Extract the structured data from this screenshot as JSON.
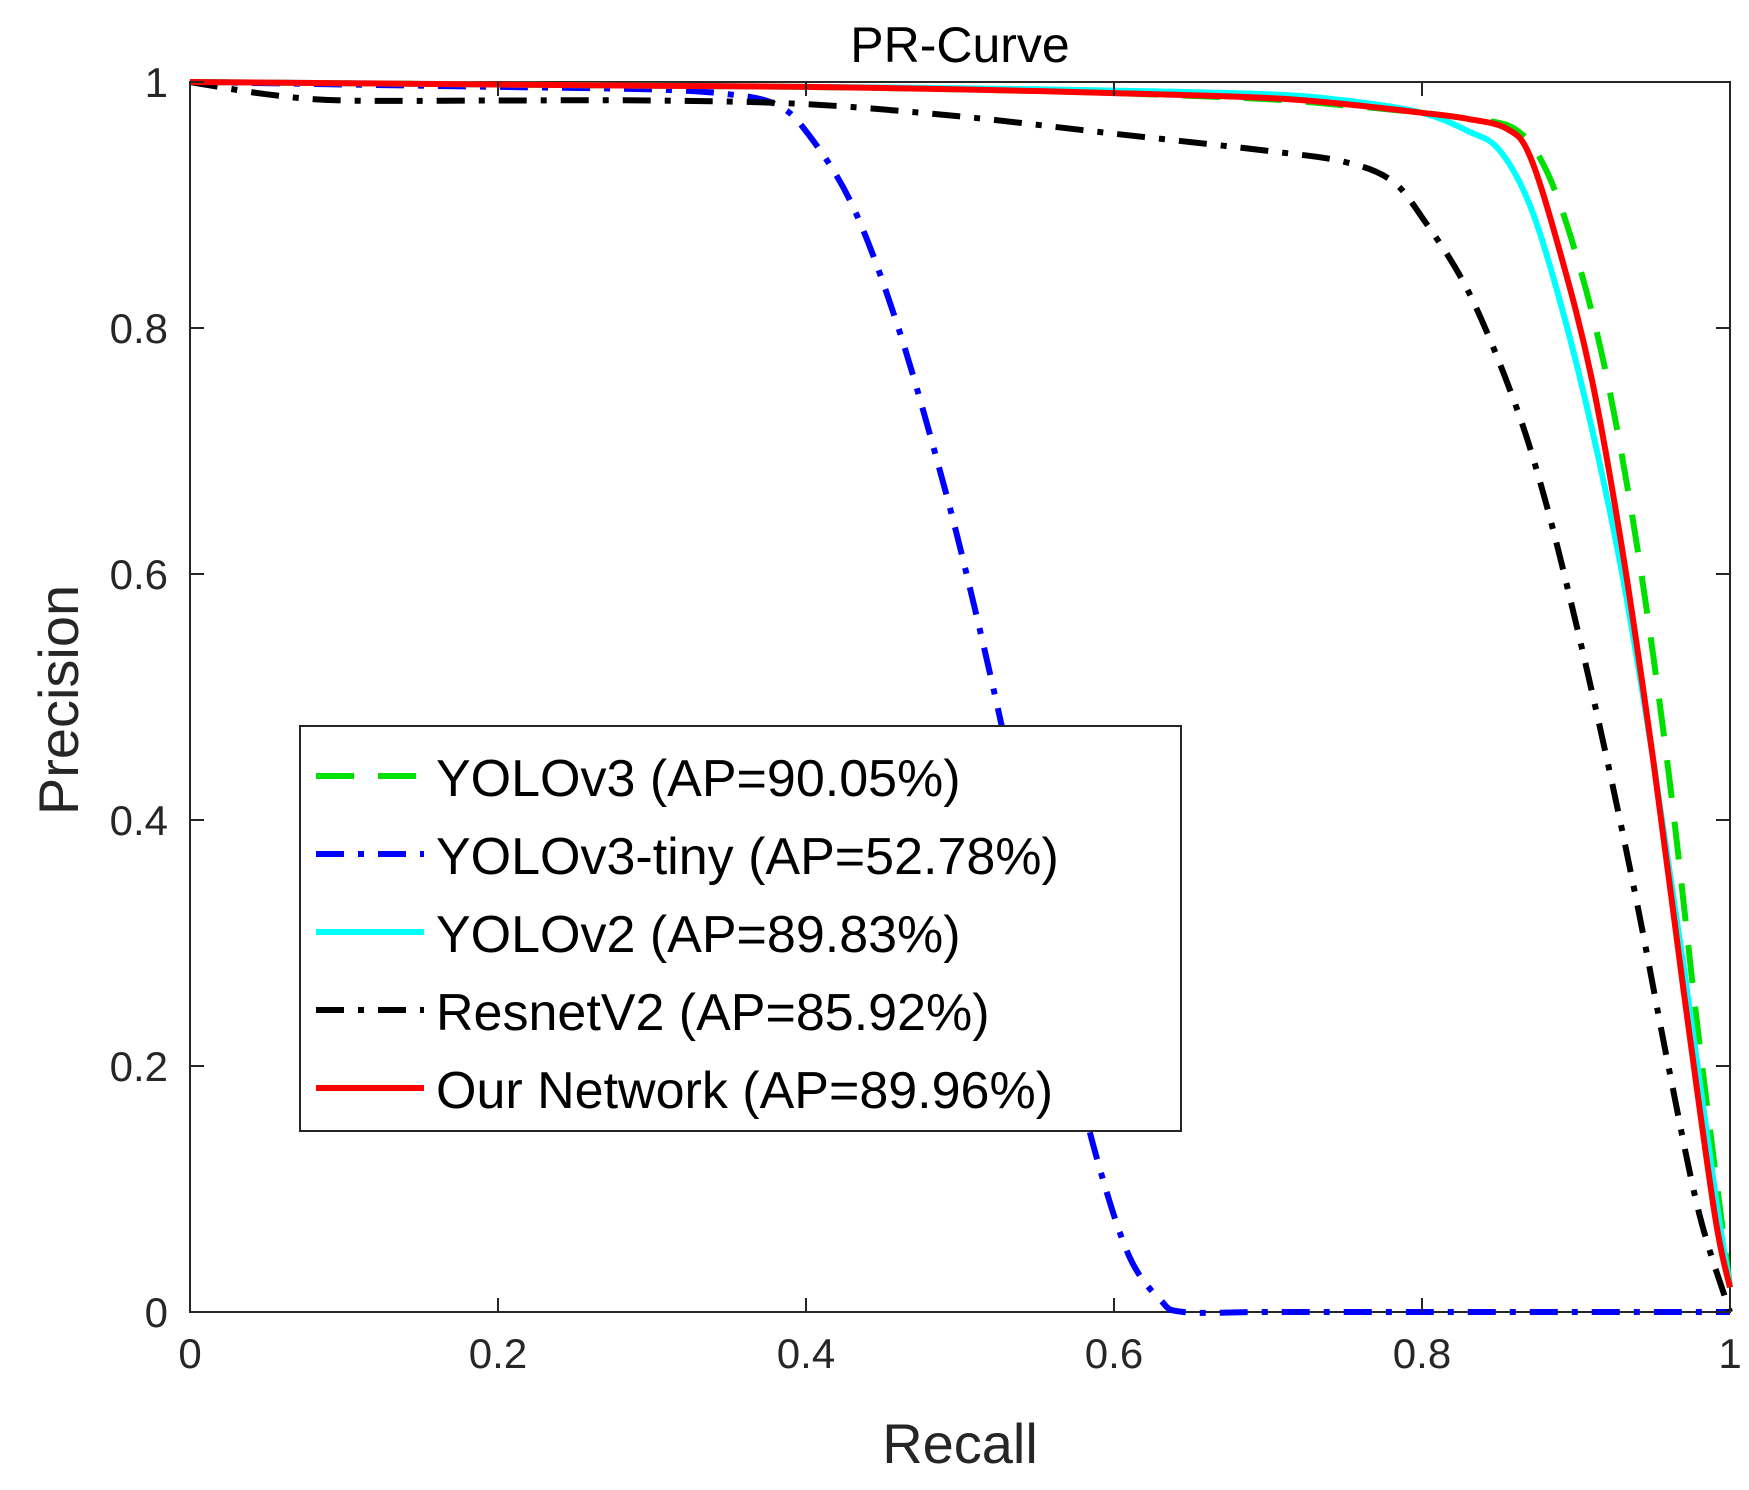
{
  "chart_data": {
    "type": "line",
    "title": "PR-Curve",
    "xlabel": "Recall",
    "ylabel": "Precision",
    "xlim": [
      0,
      1
    ],
    "ylim": [
      0,
      1
    ],
    "xticks": [
      0,
      0.2,
      0.4,
      0.6,
      0.8,
      1
    ],
    "yticks": [
      0,
      0.2,
      0.4,
      0.6,
      0.8,
      1
    ],
    "xtick_labels": [
      "0",
      "0.2",
      "0.4",
      "0.6",
      "0.8",
      "1"
    ],
    "ytick_labels": [
      "0",
      "0.2",
      "0.4",
      "0.6",
      "0.8",
      "1"
    ],
    "grid": false,
    "legend_position": "center-left",
    "series": [
      {
        "name": "YOLOv3 (AP=90.05%)",
        "color": "#00e000",
        "style": "dashed",
        "x": [
          0,
          0.1,
          0.2,
          0.3,
          0.4,
          0.5,
          0.6,
          0.7,
          0.75,
          0.8,
          0.83,
          0.86,
          0.88,
          0.9,
          0.92,
          0.94,
          0.96,
          0.98,
          1.0
        ],
        "y": [
          1.0,
          0.999,
          0.998,
          0.997,
          0.996,
          0.994,
          0.991,
          0.986,
          0.981,
          0.975,
          0.97,
          0.962,
          0.93,
          0.86,
          0.76,
          0.62,
          0.44,
          0.22,
          0.02
        ]
      },
      {
        "name": "YOLOv3-tiny (AP=52.78%)",
        "color": "#0000ff",
        "style": "dashdot",
        "x": [
          0,
          0.1,
          0.2,
          0.3,
          0.35,
          0.38,
          0.4,
          0.43,
          0.46,
          0.49,
          0.51,
          0.53,
          0.55,
          0.57,
          0.59,
          0.61,
          0.63,
          0.645,
          0.7,
          0.8,
          0.9,
          1.0
        ],
        "y": [
          1.0,
          0.998,
          0.996,
          0.994,
          0.99,
          0.982,
          0.96,
          0.9,
          0.8,
          0.67,
          0.57,
          0.46,
          0.34,
          0.22,
          0.12,
          0.045,
          0.01,
          0.0,
          0.0,
          0.0,
          0.0,
          0.0
        ]
      },
      {
        "name": "YOLOv2 (AP=89.83%)",
        "color": "#00ffff",
        "style": "solid",
        "x": [
          0,
          0.1,
          0.2,
          0.3,
          0.4,
          0.5,
          0.6,
          0.7,
          0.75,
          0.8,
          0.83,
          0.85,
          0.87,
          0.89,
          0.91,
          0.93,
          0.95,
          0.97,
          0.99,
          1.0
        ],
        "y": [
          1.0,
          0.999,
          0.998,
          0.997,
          0.996,
          0.995,
          0.993,
          0.99,
          0.985,
          0.975,
          0.96,
          0.945,
          0.9,
          0.82,
          0.72,
          0.6,
          0.45,
          0.28,
          0.1,
          0.02
        ]
      },
      {
        "name": "ResnetV2 (AP=85.92%)",
        "color": "#000000",
        "style": "dashdot",
        "x": [
          0,
          0.05,
          0.1,
          0.2,
          0.3,
          0.4,
          0.5,
          0.6,
          0.7,
          0.75,
          0.78,
          0.8,
          0.83,
          0.86,
          0.88,
          0.9,
          0.92,
          0.94,
          0.96,
          0.98,
          1.0
        ],
        "y": [
          1.0,
          0.99,
          0.985,
          0.985,
          0.985,
          0.982,
          0.972,
          0.958,
          0.944,
          0.935,
          0.92,
          0.89,
          0.83,
          0.74,
          0.66,
          0.56,
          0.45,
          0.33,
          0.2,
          0.08,
          0.0
        ]
      },
      {
        "name": "Our Network (AP=89.96%)",
        "color": "#ff0000",
        "style": "solid",
        "x": [
          0,
          0.1,
          0.2,
          0.3,
          0.4,
          0.5,
          0.6,
          0.7,
          0.75,
          0.8,
          0.83,
          0.855,
          0.87,
          0.89,
          0.91,
          0.93,
          0.95,
          0.97,
          0.99,
          1.0
        ],
        "y": [
          1.0,
          0.999,
          0.998,
          0.997,
          0.996,
          0.994,
          0.991,
          0.987,
          0.982,
          0.975,
          0.97,
          0.962,
          0.94,
          0.86,
          0.76,
          0.62,
          0.45,
          0.26,
          0.08,
          0.02
        ]
      }
    ]
  }
}
